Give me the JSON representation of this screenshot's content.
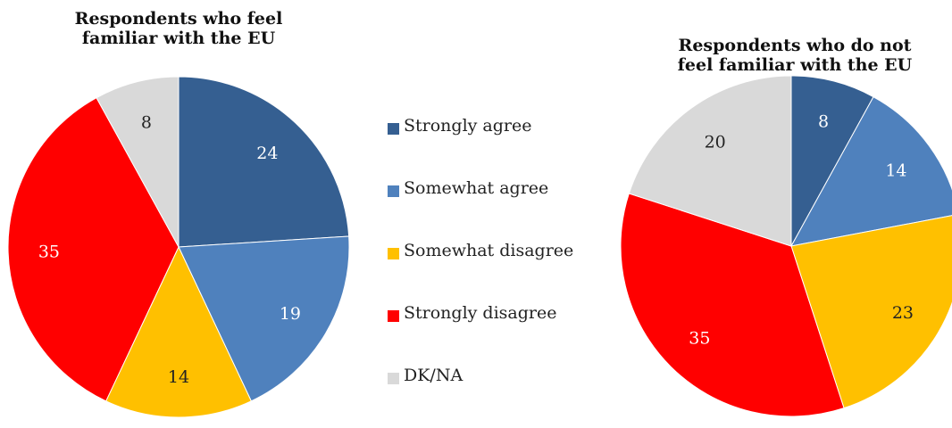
{
  "chart_data": [
    {
      "type": "pie",
      "title_lines": [
        "Respondents who feel",
        "familiar with the EU"
      ],
      "categories": [
        "Strongly agree",
        "Somewhat agree",
        "Somewhat disagree",
        "Strongly disagree",
        "DK/NA"
      ],
      "values": [
        24,
        19,
        14,
        35,
        8
      ]
    },
    {
      "type": "pie",
      "title_lines": [
        "Respondents who do not",
        "feel familiar with the EU"
      ],
      "categories": [
        "Strongly agree",
        "Somewhat agree",
        "Somewhat disagree",
        "Strongly disagree",
        "DK/NA"
      ],
      "values": [
        8,
        14,
        23,
        35,
        20
      ]
    }
  ],
  "legend": {
    "placement": "center",
    "items": [
      {
        "label": "Strongly agree",
        "color": "#355f91"
      },
      {
        "label": "Somewhat agree",
        "color": "#4f81bd"
      },
      {
        "label": "Somewhat disagree",
        "color": "#ffc000"
      },
      {
        "label": "Strongly disagree",
        "color": "#ff0000"
      },
      {
        "label": "DK/NA",
        "color": "#d9d9d9"
      }
    ]
  },
  "label_colors": [
    "#ffffff",
    "#ffffff",
    "#222222",
    "#ffffff",
    "#222222"
  ]
}
